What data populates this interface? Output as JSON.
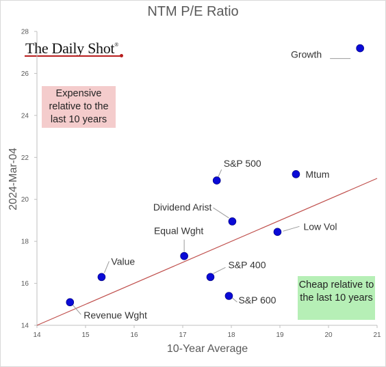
{
  "chart_data": {
    "type": "scatter",
    "title": "NTM P/E Ratio",
    "xlabel": "10-Year Average",
    "ylabel": "2024-Mar-04",
    "xlim": [
      14,
      21
    ],
    "ylim": [
      14,
      28
    ],
    "xticks": [
      14,
      15,
      16,
      17,
      18,
      19,
      20,
      21
    ],
    "yticks": [
      14,
      16,
      18,
      20,
      22,
      24,
      26,
      28
    ],
    "grid": false,
    "reference_line": {
      "from": [
        14,
        14
      ],
      "to": [
        21,
        21
      ],
      "color": "#c0504d"
    },
    "points": [
      {
        "label": "Growth",
        "x": 20.65,
        "y": 27.2
      },
      {
        "label": "S&P 500",
        "x": 17.7,
        "y": 20.9
      },
      {
        "label": "Mtum",
        "x": 19.33,
        "y": 21.2
      },
      {
        "label": "Dividend Arist",
        "x": 18.02,
        "y": 18.95
      },
      {
        "label": "Low Vol",
        "x": 18.95,
        "y": 18.45
      },
      {
        "label": "Equal Wght",
        "x": 17.03,
        "y": 17.3
      },
      {
        "label": "Value",
        "x": 15.33,
        "y": 16.3
      },
      {
        "label": "S&P 400",
        "x": 17.57,
        "y": 16.3
      },
      {
        "label": "S&P 600",
        "x": 17.95,
        "y": 15.4
      },
      {
        "label": "Revenue Wght",
        "x": 14.68,
        "y": 15.1
      }
    ],
    "point_color": "#0a0ad6"
  },
  "annotations": {
    "expensive": "Expensive relative to the last 10 years",
    "cheap": "Cheap relative to the last 10 years"
  },
  "logo": {
    "text": "The Daily Shot",
    "mark": "®"
  }
}
